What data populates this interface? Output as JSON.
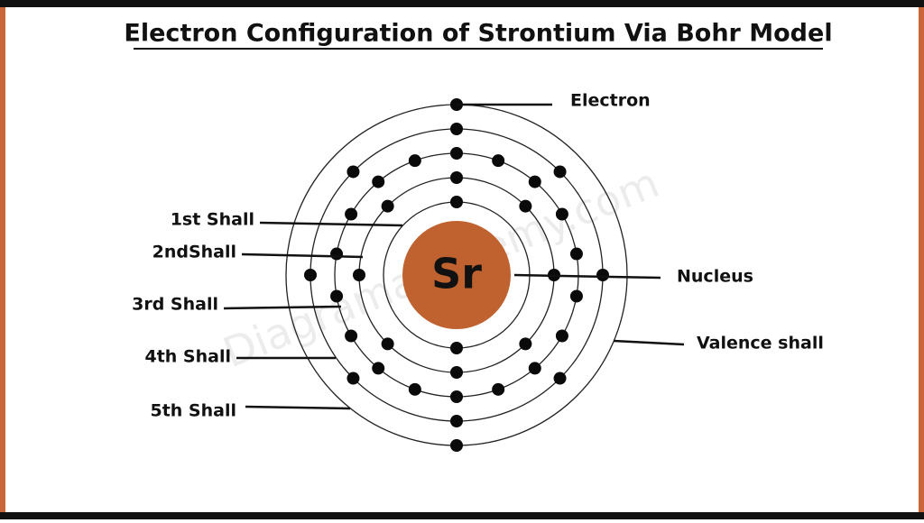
{
  "title": "Electron Configuration of Strontium Via Bohr Model",
  "nucleus_symbol": "Sr",
  "watermark": "Diagramacademy.com",
  "labels": {
    "electron": "Electron",
    "shell1": "1st Shall",
    "shell2": "2ndShall",
    "shell3": "3rd Shall",
    "shell4": "4th Shall",
    "shell5": "5th Shall",
    "nucleus": "Nucleus",
    "valence": "Valence shall"
  }
}
